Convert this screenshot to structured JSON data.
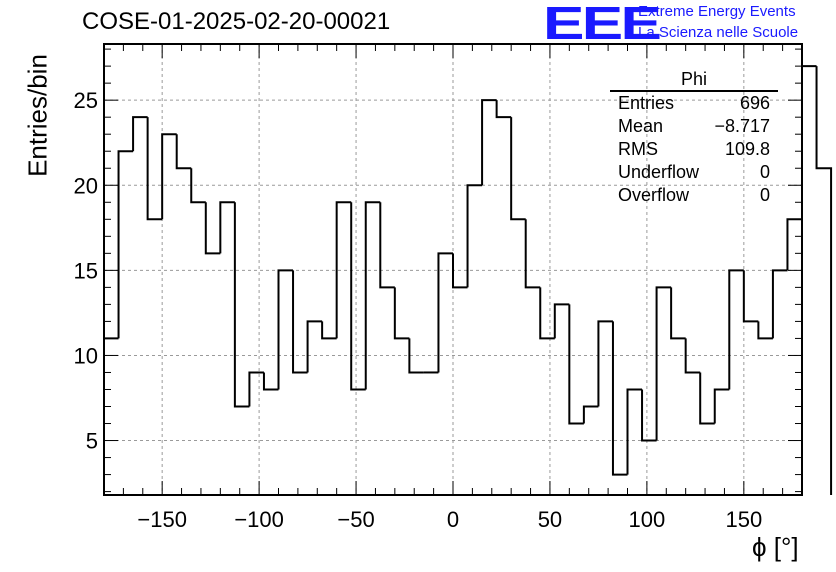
{
  "header": {
    "title": "COSE-01-2025-02-20-00021",
    "logo_text": "EEE",
    "logo_line1": "Extreme Energy Events",
    "logo_line2": "La Scienza nelle Scuole"
  },
  "stats": {
    "name": "Phi",
    "rows": [
      {
        "label": "Entries",
        "value": "696"
      },
      {
        "label": "Mean",
        "value": "−8.717"
      },
      {
        "label": "RMS",
        "value": "109.8"
      },
      {
        "label": "Underflow",
        "value": "0"
      },
      {
        "label": "Overflow",
        "value": "0"
      }
    ]
  },
  "colors": {
    "line": "#000000",
    "grid": "#9a9a9a",
    "logo": "#1a1aff"
  },
  "chart_data": {
    "type": "histogram",
    "title": "COSE-01-2025-02-20-00021",
    "xlabel": "ϕ [°]",
    "ylabel": "Entries/bin",
    "xlim": [
      -180,
      180
    ],
    "ylim": [
      1.8,
      28.3
    ],
    "bin_width": 7.5,
    "xticks": [
      -150,
      -100,
      -50,
      0,
      50,
      100,
      150
    ],
    "xtick_labels": [
      "−150",
      "−100",
      "−50",
      "0",
      "50",
      "100",
      "150"
    ],
    "yticks": [
      5,
      10,
      15,
      20,
      25
    ],
    "ytick_labels": [
      "5",
      "10",
      "15",
      "20",
      "25"
    ],
    "grid": true,
    "values": [
      11,
      22,
      24,
      18,
      23,
      21,
      19,
      16,
      19,
      7,
      9,
      8,
      15,
      9,
      12,
      11,
      19,
      8,
      19,
      14,
      11,
      9,
      9,
      16,
      14,
      20,
      25,
      24,
      18,
      14,
      11,
      13,
      6,
      7,
      12,
      3,
      8,
      5,
      14,
      11,
      9,
      6,
      8,
      15,
      12,
      11,
      15,
      18,
      27,
      21
    ]
  }
}
